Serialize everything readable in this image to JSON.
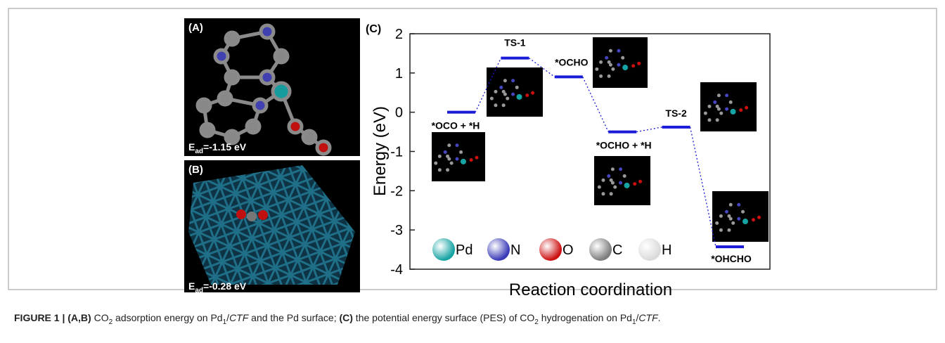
{
  "panels": [
    {
      "label": "(A)",
      "energy": [
        "E",
        "ad",
        "=-1.15 eV"
      ]
    },
    {
      "label": "(B)",
      "energy": [
        "E",
        "ad",
        "=-0.28 eV"
      ]
    }
  ],
  "chart_data": {
    "type": "level",
    "panel_label": "(C)",
    "ylabel": "Energy (eV)",
    "xlabel": "Reaction coordination",
    "categories": [
      "*OCO + *H",
      "TS-1",
      "*OCHO",
      "*OCHO + *H",
      "TS-2",
      "*OHCHO"
    ],
    "values": [
      0,
      1.38,
      0.9,
      -0.5,
      -0.38,
      -3.43
    ],
    "color": "#1a1ad8",
    "ylim": [
      -4,
      2
    ],
    "yticks": [
      2,
      1,
      0,
      -1,
      -2,
      -3,
      -4
    ],
    "legend": [
      {
        "name": "Pd",
        "color": "#16a3a3"
      },
      {
        "name": "N",
        "color": "#3a3ab8"
      },
      {
        "name": "O",
        "color": "#cc1010"
      },
      {
        "name": "C",
        "color": "#7d7d7d"
      },
      {
        "name": "H",
        "color": "#dadada"
      }
    ]
  },
  "caption": [
    "FIGURE 1 | (A,B)",
    " CO",
    "2",
    " adsorption energy on Pd",
    "1",
    "/",
    "CTF",
    " and the Pd surface; ",
    "(C)",
    " the potential energy surface (PES) of CO",
    "2",
    " hydrogenation on Pd",
    "1",
    "/",
    "CTF",
    "."
  ]
}
